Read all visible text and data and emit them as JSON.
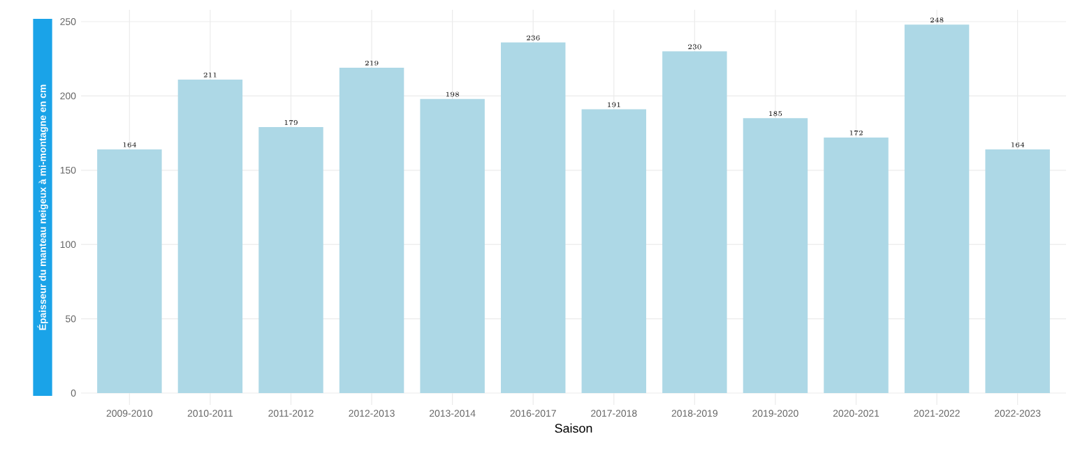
{
  "chart_data": {
    "type": "bar",
    "xlabel": "Saison",
    "ylabel": "Épaisseur du manteau neigeux à mi-montagne en cm",
    "categories": [
      "2009-2010",
      "2010-2011",
      "2011-2012",
      "2012-2013",
      "2013-2014",
      "2016-2017",
      "2017-2018",
      "2018-2019",
      "2019-2020",
      "2020-2021",
      "2021-2022",
      "2022-2023"
    ],
    "values": [
      164,
      211,
      179,
      219,
      198,
      236,
      191,
      230,
      185,
      172,
      248,
      164
    ],
    "color": "#add8e6",
    "ylim": [
      -8,
      258
    ],
    "yticks": [
      0,
      50,
      100,
      150,
      200,
      250
    ],
    "grid": true,
    "data_labels": true
  }
}
